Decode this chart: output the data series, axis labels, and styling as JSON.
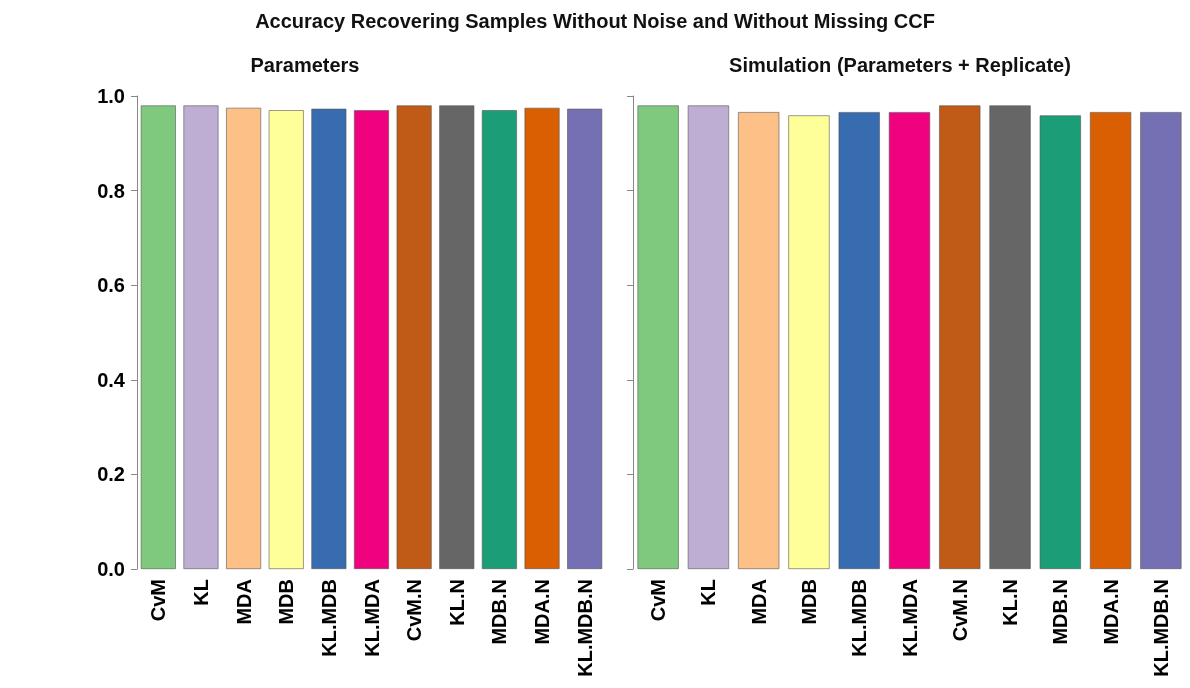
{
  "chart_data": [
    {
      "type": "bar",
      "title": "Parameters",
      "annotations": [
        "Accuracy Recovering Samples Without Noise and Without Missing CCF"
      ],
      "categories": [
        "CvM",
        "KL",
        "MDA",
        "MDB",
        "KL.MDB",
        "KL.MDA",
        "CvM.N",
        "KL.N",
        "MDB.N",
        "MDA.N",
        "KL.MDB.N"
      ],
      "values": [
        0.98,
        0.98,
        0.975,
        0.97,
        0.973,
        0.97,
        0.98,
        0.98,
        0.97,
        0.975,
        0.973
      ],
      "colors": [
        "#7fc97f",
        "#beaed4",
        "#fdc086",
        "#ffff99",
        "#386cb0",
        "#f0027f",
        "#bf5b17",
        "#666666",
        "#1b9e77",
        "#d95f02",
        "#7570b3"
      ],
      "ylim": [
        0,
        1
      ],
      "yticks": [
        {
          "value": 0,
          "label": "0.0"
        },
        0.2,
        0.4,
        0.6,
        0.8,
        {
          "value": 1,
          "label": "1.0"
        }
      ],
      "grid": false
    },
    {
      "type": "bar",
      "title": "Simulation (Parameters + Replicate)",
      "categories": [
        "CvM",
        "KL",
        "MDA",
        "MDB",
        "KL.MDB",
        "KL.MDA",
        "CvM.N",
        "KL.N",
        "MDB.N",
        "MDA.N",
        "KL.MDB.N"
      ],
      "values": [
        0.98,
        0.98,
        0.966,
        0.959,
        0.966,
        0.966,
        0.98,
        0.98,
        0.959,
        0.966,
        0.966
      ],
      "colors": [
        "#7fc97f",
        "#beaed4",
        "#fdc086",
        "#ffff99",
        "#386cb0",
        "#f0027f",
        "#bf5b17",
        "#666666",
        "#1b9e77",
        "#d95f02",
        "#7570b3"
      ],
      "ylim": [
        0,
        1
      ],
      "yticks": [
        0,
        0.2,
        0.4,
        0.6,
        0.8,
        1
      ],
      "tick_labels": "x",
      "grid": false
    }
  ]
}
